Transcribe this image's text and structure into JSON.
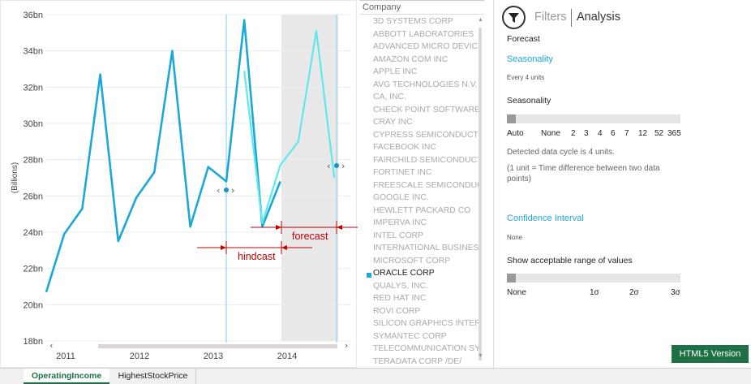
{
  "chart_data": {
    "type": "line",
    "ylabel": "(Billions)",
    "y_ticks": [
      "18bn",
      "20bn",
      "22bn",
      "24bn",
      "26bn",
      "28bn",
      "30bn",
      "32bn",
      "34bn",
      "36bn"
    ],
    "ylim": [
      18,
      36
    ],
    "x_ticks": [
      "2011",
      "2012",
      "2013",
      "2014"
    ],
    "grid": "horizontal",
    "series": [
      {
        "values": [
          20.7,
          23.9,
          25.3,
          32.7,
          23.5,
          25.9,
          27.3,
          34.0,
          24.3,
          27.6,
          26.8,
          35.7,
          24.3,
          26.8
        ],
        "color": "#1aa8d8"
      },
      {
        "values": [
          32.9,
          24.5,
          27.7,
          29.0,
          35.1,
          27.0
        ],
        "color": "#5ee8ee"
      }
    ],
    "forecast_region": true,
    "annotations": {
      "hindcast": "hindcast",
      "forecast": "forecast"
    }
  },
  "company_list": {
    "header": "Company",
    "items": [
      "3D SYSTEMS CORP",
      "ABBOTT LABORATORIES",
      "ADVANCED MICRO DEVICES",
      "AMAZON COM INC",
      "APPLE INC",
      "AVG TECHNOLOGIES N.V.",
      "CA, INC.",
      "CHECK POINT SOFTWARE TEC",
      "CRAY INC",
      "CYPRESS SEMICONDUCTOR",
      "FACEBOOK INC",
      "FAIRCHILD SEMICONDUCTOR",
      "FORTINET INC",
      "FREESCALE SEMICONDUCTOR",
      "GOOGLE INC.",
      "HEWLETT PACKARD CO",
      "IMPERVA INC",
      "INTEL CORP",
      "INTERNATIONAL BUSINESS M",
      "MICROSOFT CORP",
      "ORACLE CORP",
      "QUALYS, INC.",
      "RED HAT INC",
      "ROVI CORP",
      "SILICON GRAPHICS INTERNA",
      "SYMANTEC CORP",
      "TELECOMMUNICATION SYST",
      "TERADATA CORP /DE/"
    ],
    "selected": "ORACLE CORP"
  },
  "right_panel": {
    "tabs": {
      "filters": "Filters",
      "analysis": "Analysis"
    },
    "forecast_heading": "Forecast",
    "seasonality_link": "Seasonality",
    "seasonality_sub": "Every 4 units",
    "seasonality_label": "Seasonality",
    "seasonality_options": [
      "Auto",
      "None",
      "2",
      "3",
      "4",
      "6",
      "7",
      "12",
      "52",
      "365"
    ],
    "detected_text": "Detected data cycle is 4 units.",
    "unit_note": "(1 unit = Time difference between two data points)",
    "confidence_link": "Confidence Interval",
    "confidence_sub": "None",
    "range_label": "Show acceptable range of values",
    "range_options": [
      "None",
      "1σ",
      "2σ",
      "3σ"
    ],
    "html5_button": "HTML5 Version"
  },
  "sheet_tabs": [
    "OperatingIncome",
    "HighestStockPrice"
  ],
  "colors": {
    "actual_line": "#1aa8d8",
    "forecast_line": "#5ee8ee",
    "annotation": "#c00000",
    "excel_green": "#1e7145"
  }
}
